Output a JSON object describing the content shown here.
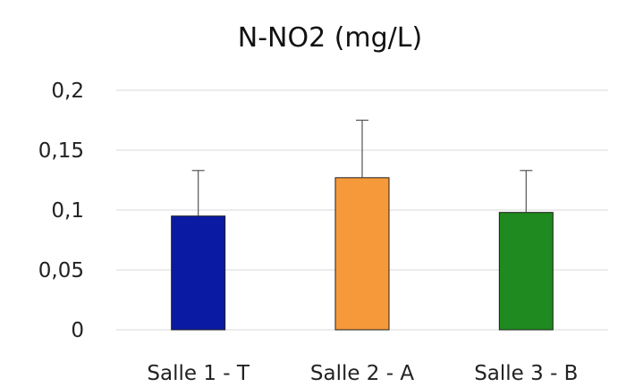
{
  "chart_data": {
    "type": "bar",
    "title": "N-NO2 (mg/L)",
    "xlabel": "",
    "ylabel": "",
    "categories": [
      "Salle 1 - T",
      "Salle 2 - A",
      "Salle 3 - B"
    ],
    "values": [
      0.095,
      0.127,
      0.098
    ],
    "error_upper": [
      0.038,
      0.048,
      0.035
    ],
    "colors": [
      "#0b1aa3",
      "#f6993a",
      "#1f8a1f"
    ],
    "ylim": [
      0,
      0.2
    ],
    "yticks": [
      0,
      0.05,
      0.1,
      0.15,
      0.2
    ],
    "ytick_labels": [
      "0",
      "0,05",
      "0,1",
      "0,15",
      "0,2"
    ],
    "grid": true,
    "legend": "none"
  }
}
